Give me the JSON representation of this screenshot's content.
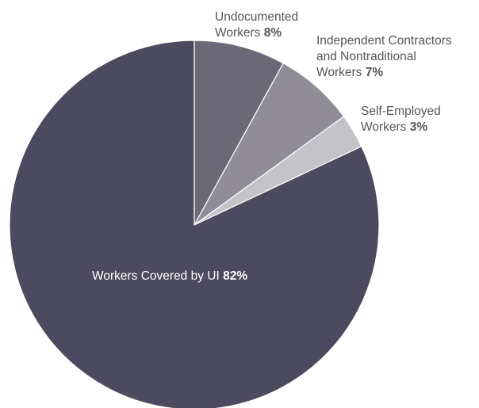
{
  "chart_data": {
    "type": "pie",
    "title": "",
    "slices": [
      {
        "label_lines": [
          "Undocumented",
          "Workers"
        ],
        "value": 8,
        "value_label": "8%",
        "color": "#6b6877"
      },
      {
        "label_lines": [
          "Independent Contractors",
          "and Nontraditional",
          "Workers"
        ],
        "value": 7,
        "value_label": "7%",
        "color": "#908d98"
      },
      {
        "label_lines": [
          "Self-Employed",
          "Workers"
        ],
        "value": 3,
        "value_label": "3%",
        "color": "#c4c3c8"
      },
      {
        "label_lines": [
          "Workers Covered by UI"
        ],
        "value": 82,
        "value_label": "82%",
        "color": "#4c4a5f"
      }
    ],
    "start_angle_deg": 0,
    "direction": "clockwise",
    "legend": "none"
  }
}
